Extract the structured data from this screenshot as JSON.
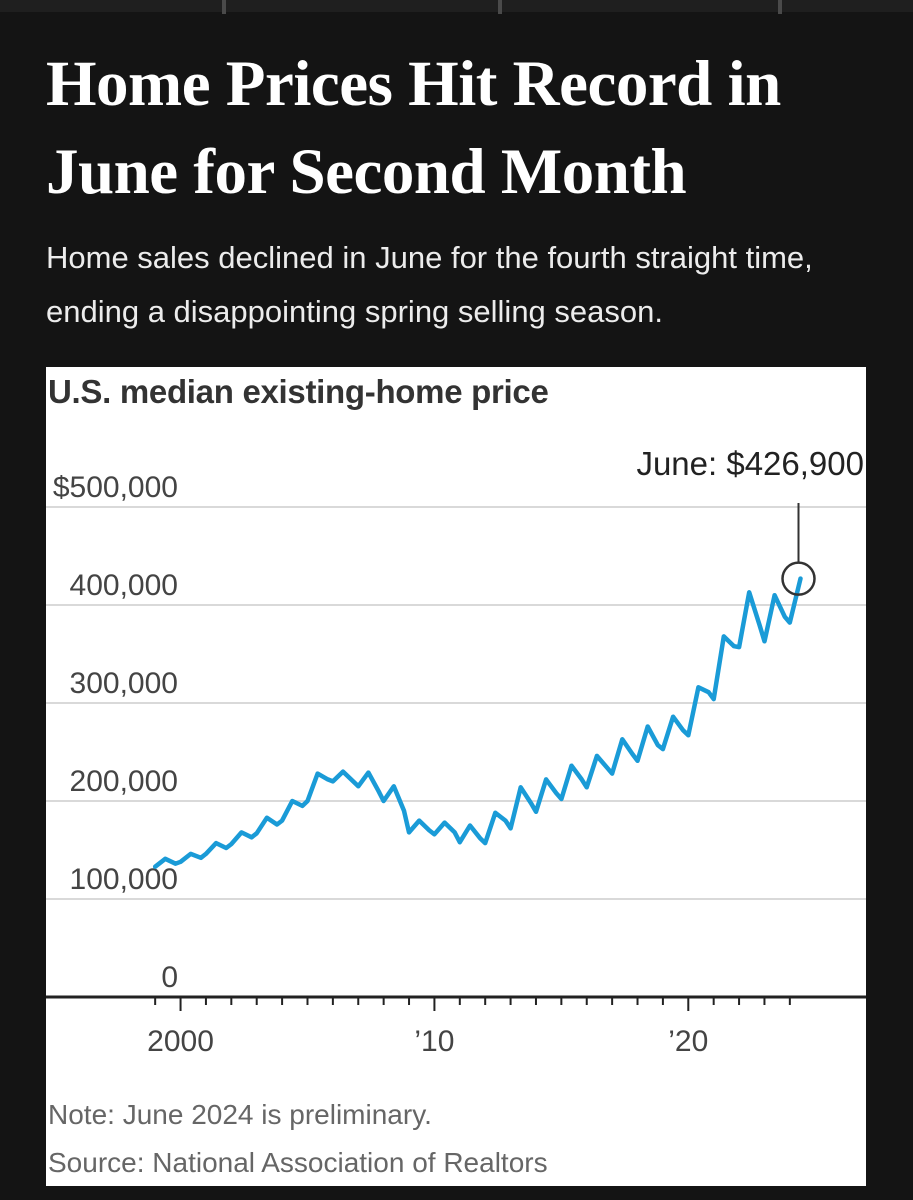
{
  "headline": "Home Prices Hit Record in June for Second Month",
  "dek": "Home sales declined in June for the fourth straight time, ending a disappointing spring selling season.",
  "chart_data": {
    "type": "line",
    "title": "U.S. median existing-home price",
    "xlabel": "",
    "ylabel": "",
    "ylim": [
      0,
      500000
    ],
    "xlim": [
      1994.7,
      2027.0
    ],
    "grid": true,
    "y_ticks": [
      {
        "value": 0,
        "label": "0"
      },
      {
        "value": 100000,
        "label": "100,000"
      },
      {
        "value": 200000,
        "label": "200,000"
      },
      {
        "value": 300000,
        "label": "300,000"
      },
      {
        "value": 400000,
        "label": "400,000"
      },
      {
        "value": 500000,
        "label": "$500,000"
      }
    ],
    "x_ticks": [
      {
        "value": 2000,
        "label": "2000"
      },
      {
        "value": 2010,
        "label": "’10"
      },
      {
        "value": 2020,
        "label": "’20"
      }
    ],
    "annotation": {
      "x": 2024.42,
      "y": 426900,
      "label": "June: $426,900"
    },
    "line_color": "#1a9bd7",
    "series": [
      {
        "values": [
          [
            1999.0,
            133000
          ],
          [
            1999.4,
            141000
          ],
          [
            1999.8,
            136000
          ],
          [
            2000.0,
            138000
          ],
          [
            2000.4,
            146000
          ],
          [
            2000.8,
            142000
          ],
          [
            2001.0,
            146000
          ],
          [
            2001.4,
            157000
          ],
          [
            2001.8,
            152000
          ],
          [
            2002.0,
            156000
          ],
          [
            2002.4,
            168000
          ],
          [
            2002.8,
            163000
          ],
          [
            2003.0,
            167000
          ],
          [
            2003.4,
            183000
          ],
          [
            2003.8,
            176000
          ],
          [
            2004.0,
            180000
          ],
          [
            2004.4,
            200000
          ],
          [
            2004.8,
            195000
          ],
          [
            2005.0,
            200000
          ],
          [
            2005.4,
            228000
          ],
          [
            2005.8,
            222000
          ],
          [
            2006.0,
            220000
          ],
          [
            2006.4,
            230000
          ],
          [
            2006.8,
            220000
          ],
          [
            2007.0,
            215000
          ],
          [
            2007.4,
            229000
          ],
          [
            2007.8,
            210000
          ],
          [
            2008.0,
            200000
          ],
          [
            2008.4,
            215000
          ],
          [
            2008.8,
            190000
          ],
          [
            2009.0,
            168000
          ],
          [
            2009.4,
            180000
          ],
          [
            2009.8,
            170000
          ],
          [
            2010.0,
            166000
          ],
          [
            2010.4,
            178000
          ],
          [
            2010.8,
            168000
          ],
          [
            2011.0,
            158000
          ],
          [
            2011.4,
            175000
          ],
          [
            2011.8,
            162000
          ],
          [
            2012.0,
            157000
          ],
          [
            2012.4,
            188000
          ],
          [
            2012.8,
            180000
          ],
          [
            2013.0,
            172000
          ],
          [
            2013.4,
            214000
          ],
          [
            2013.8,
            198000
          ],
          [
            2014.0,
            189000
          ],
          [
            2014.4,
            222000
          ],
          [
            2014.8,
            208000
          ],
          [
            2015.0,
            202000
          ],
          [
            2015.4,
            236000
          ],
          [
            2015.8,
            222000
          ],
          [
            2016.0,
            214000
          ],
          [
            2016.4,
            246000
          ],
          [
            2016.8,
            234000
          ],
          [
            2017.0,
            228000
          ],
          [
            2017.4,
            263000
          ],
          [
            2017.8,
            248000
          ],
          [
            2018.0,
            241000
          ],
          [
            2018.4,
            276000
          ],
          [
            2018.8,
            257000
          ],
          [
            2019.0,
            253000
          ],
          [
            2019.4,
            286000
          ],
          [
            2019.8,
            272000
          ],
          [
            2020.0,
            267000
          ],
          [
            2020.4,
            316000
          ],
          [
            2020.8,
            311000
          ],
          [
            2021.0,
            304000
          ],
          [
            2021.4,
            368000
          ],
          [
            2021.8,
            358000
          ],
          [
            2022.0,
            357000
          ],
          [
            2022.4,
            413000
          ],
          [
            2022.8,
            380000
          ],
          [
            2023.0,
            363000
          ],
          [
            2023.4,
            410000
          ],
          [
            2023.8,
            388000
          ],
          [
            2024.0,
            382000
          ],
          [
            2024.42,
            426900
          ]
        ]
      }
    ]
  },
  "note": "Note: June 2024 is preliminary.",
  "source": "Source: National Association of Realtors"
}
